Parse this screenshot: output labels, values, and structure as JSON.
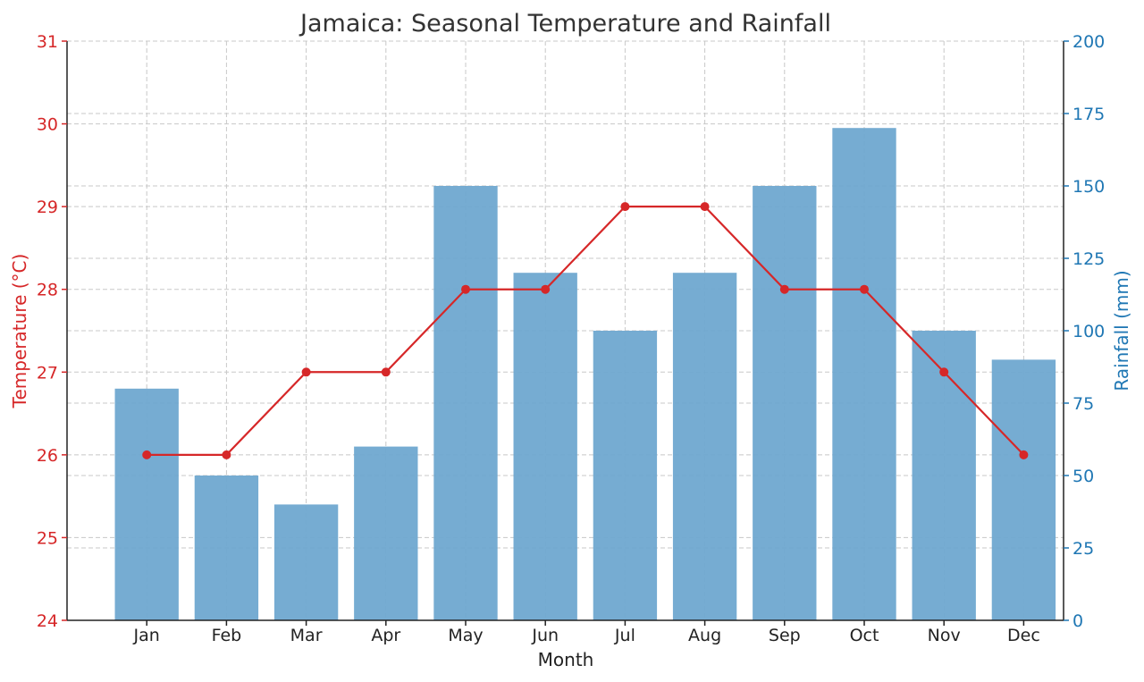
{
  "chart_data": {
    "type": "bar",
    "title": "Jamaica: Seasonal Temperature and Rainfall",
    "xlabel": "Month",
    "categories": [
      "Jan",
      "Feb",
      "Mar",
      "Apr",
      "May",
      "Jun",
      "Jul",
      "Aug",
      "Sep",
      "Oct",
      "Nov",
      "Dec"
    ],
    "series": [
      {
        "type": "bar",
        "axis": "right",
        "values": [
          80,
          50,
          40,
          60,
          150,
          120,
          100,
          120,
          150,
          170,
          100,
          90
        ],
        "color": "#6fa8d0"
      },
      {
        "type": "line",
        "axis": "left",
        "values": [
          26,
          26,
          27,
          27,
          28,
          28,
          29,
          29,
          28,
          28,
          27,
          26
        ],
        "color": "#d62728"
      }
    ],
    "y_left": {
      "label": "Temperature (°C)",
      "ylim": [
        24,
        31
      ],
      "ticks": [
        "24",
        "25",
        "26",
        "27",
        "28",
        "29",
        "30",
        "31"
      ],
      "color": "#d62728"
    },
    "y_right": {
      "label": "Rainfall (mm)",
      "ylim": [
        0,
        200
      ],
      "ticks": [
        "0",
        "25",
        "50",
        "75",
        "100",
        "125",
        "150",
        "175",
        "200"
      ],
      "color": "#1f77b4"
    },
    "grid": true
  }
}
